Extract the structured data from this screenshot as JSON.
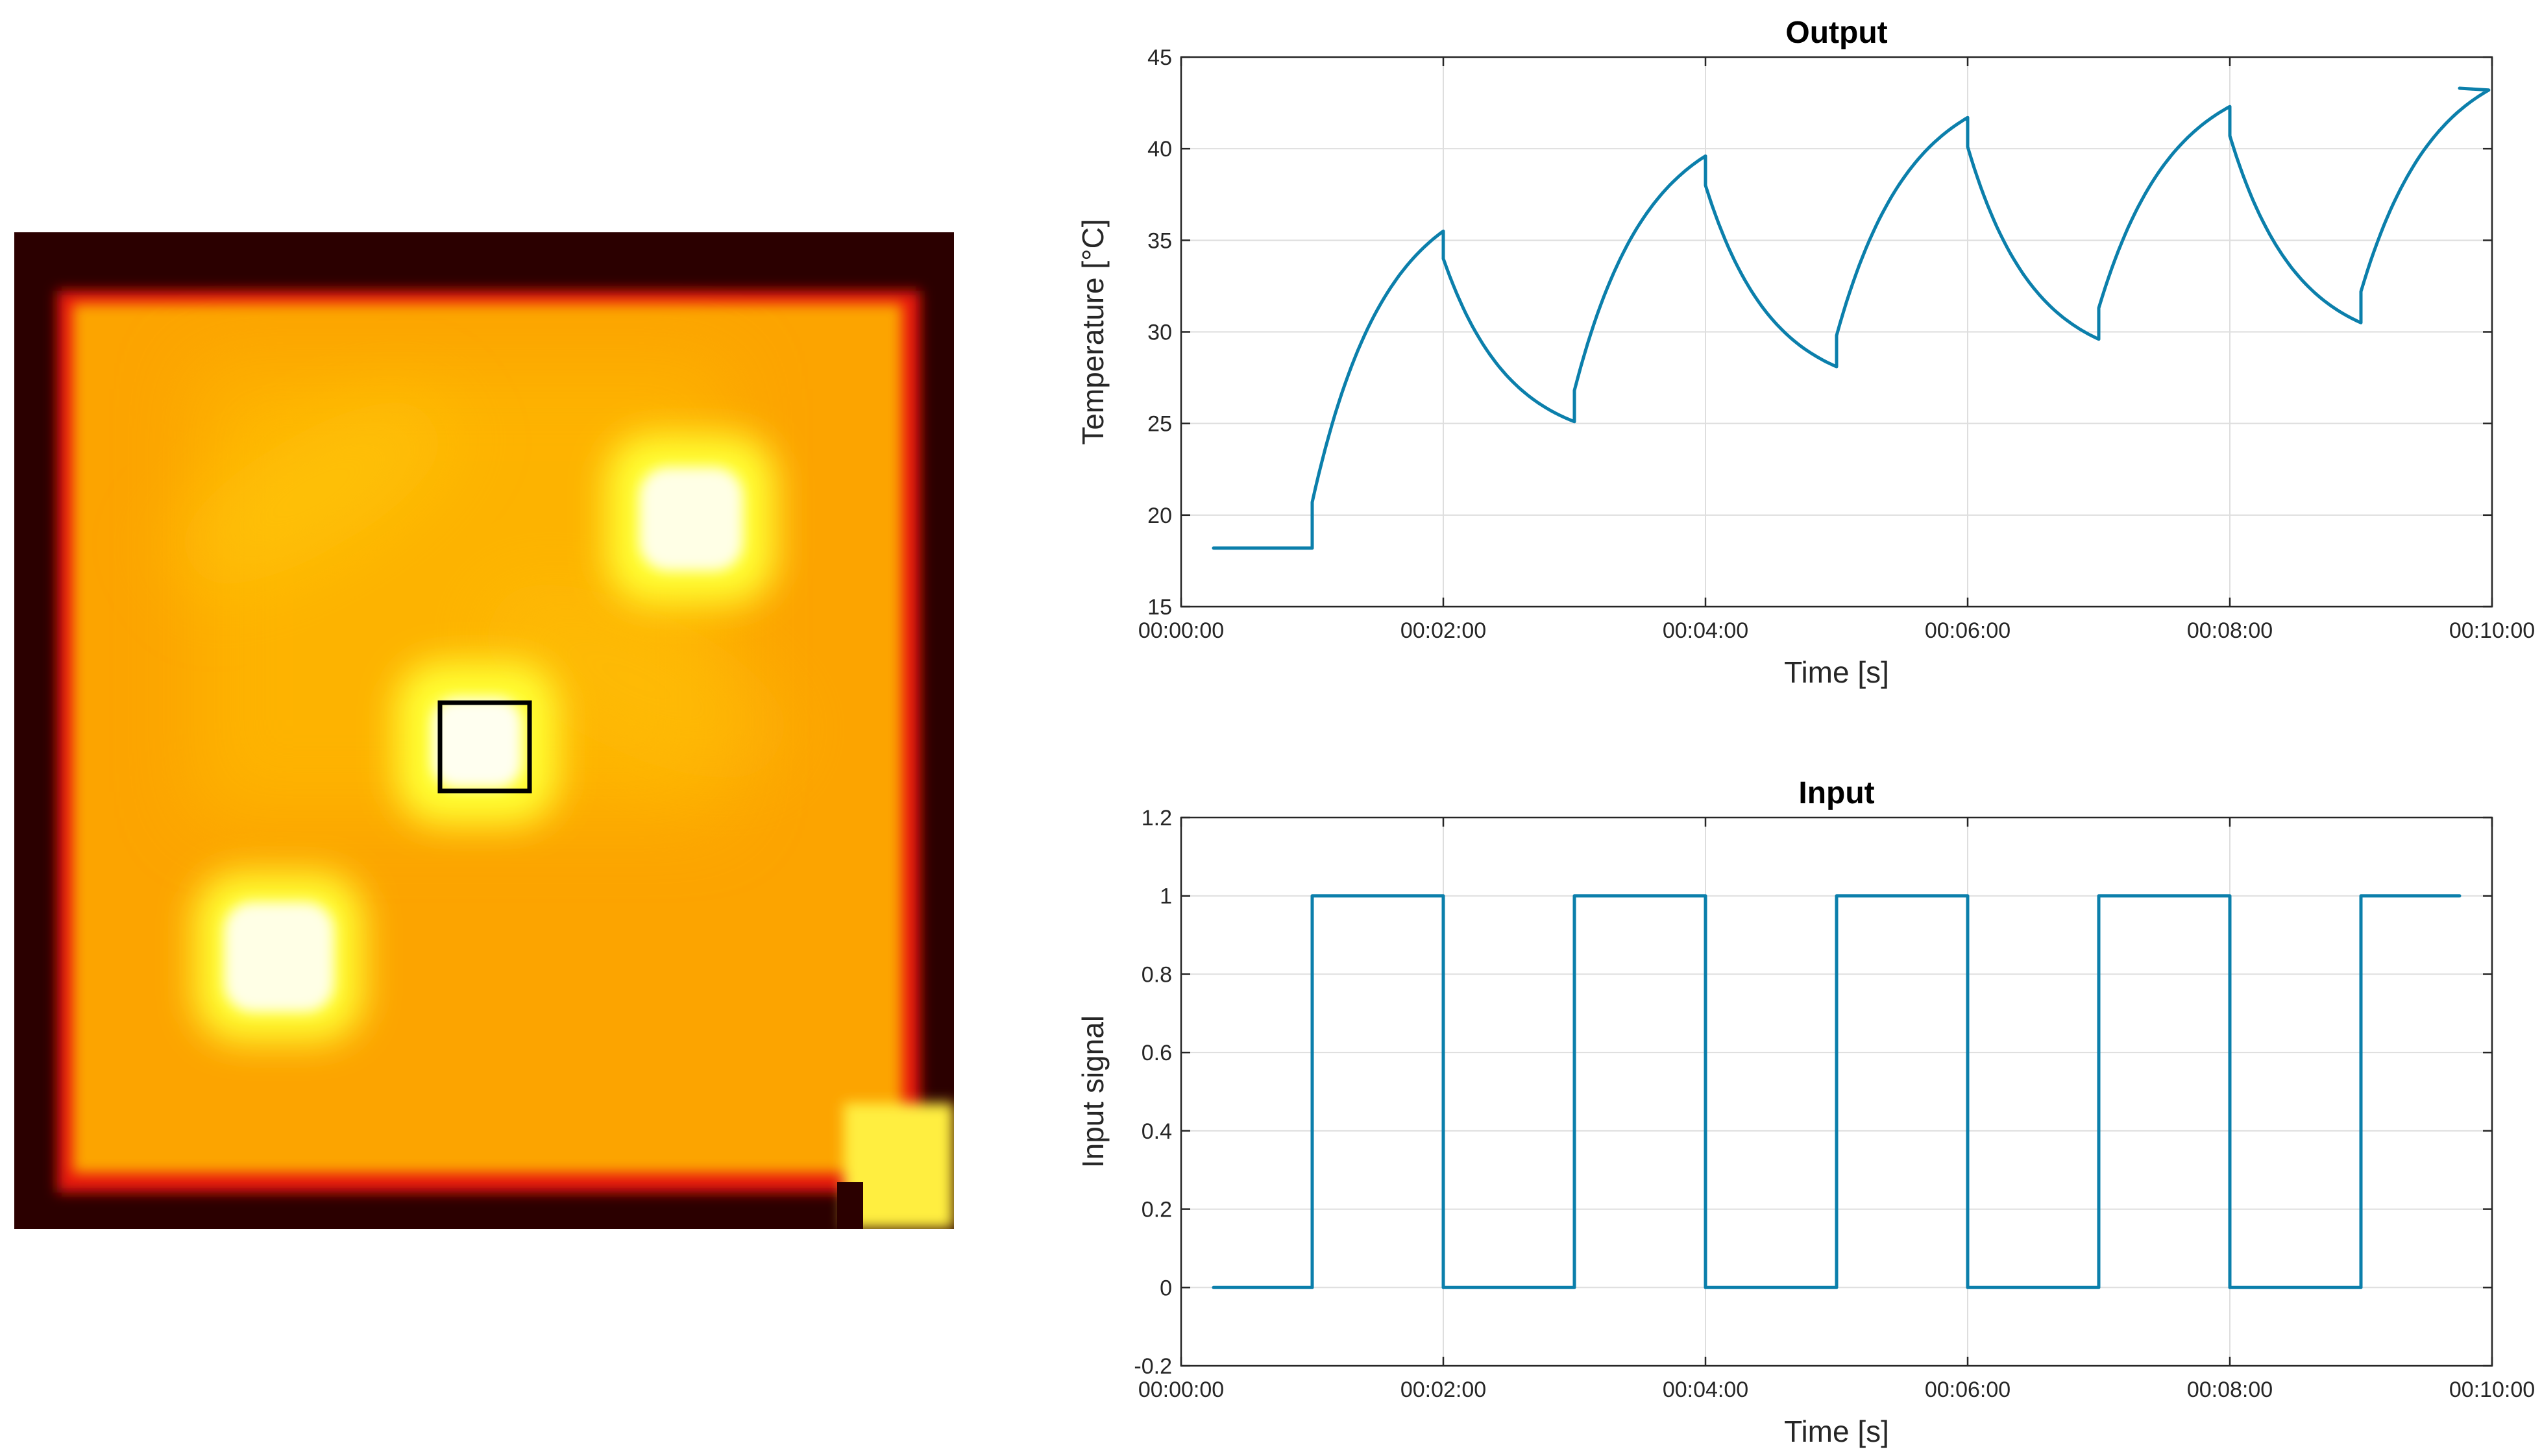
{
  "thermal_image": {
    "palette": [
      "#2b0000",
      "#8a0000",
      "#ff2a00",
      "#ff9f00",
      "#ffd000",
      "#ffff40",
      "#ffffff"
    ]
  },
  "chart_data": [
    {
      "type": "line",
      "title": "Output",
      "xlabel": "Time [s]",
      "ylabel": "Temperature [°C]",
      "grid": true,
      "xlim": [
        0,
        600
      ],
      "ylim": [
        15,
        45
      ],
      "xticks": [
        0,
        120,
        240,
        360,
        480,
        600
      ],
      "xtick_labels": [
        "00:00:00",
        "00:02:00",
        "00:04:00",
        "00:06:00",
        "00:08:00",
        "00:10:00"
      ],
      "yticks": [
        15,
        20,
        25,
        30,
        35,
        40,
        45
      ],
      "ytick_labels": [
        "15",
        "20",
        "25",
        "30",
        "35",
        "40",
        "45"
      ],
      "color": "#0b7fab",
      "series": [
        {
          "segments": [
            {
              "kind": "flat",
              "t0": 0,
              "t1": 60,
              "v": 18.2
            },
            {
              "kind": "heat",
              "t0": 60,
              "t1": 120,
              "v0": 18.2,
              "v1": 35.5,
              "jump": 2.5
            },
            {
              "kind": "cool",
              "t0": 120,
              "t1": 180,
              "v0": 35.5,
              "v1": 25.1,
              "jump": 1.5
            },
            {
              "kind": "heat",
              "t0": 180,
              "t1": 240,
              "v0": 25.1,
              "v1": 39.6,
              "jump": 1.7
            },
            {
              "kind": "cool",
              "t0": 240,
              "t1": 300,
              "v0": 39.6,
              "v1": 28.1,
              "jump": 1.6
            },
            {
              "kind": "heat",
              "t0": 300,
              "t1": 360,
              "v0": 28.1,
              "v1": 41.7,
              "jump": 1.7
            },
            {
              "kind": "cool",
              "t0": 360,
              "t1": 420,
              "v0": 41.7,
              "v1": 29.6,
              "jump": 1.6
            },
            {
              "kind": "heat",
              "t0": 420,
              "t1": 480,
              "v0": 29.6,
              "v1": 42.3,
              "jump": 1.7
            },
            {
              "kind": "cool",
              "t0": 480,
              "t1": 540,
              "v0": 42.3,
              "v1": 30.5,
              "jump": 1.6
            },
            {
              "kind": "heat",
              "t0": 540,
              "t1": 600,
              "v0": 30.5,
              "v1": 43.3,
              "jump": 1.7
            }
          ]
        }
      ]
    },
    {
      "type": "line",
      "title": "Input",
      "xlabel": "Time [s]",
      "ylabel": "Input signal",
      "grid": true,
      "xlim": [
        0,
        600
      ],
      "ylim": [
        -0.2,
        1.2
      ],
      "xticks": [
        0,
        120,
        240,
        360,
        480,
        600
      ],
      "xtick_labels": [
        "00:00:00",
        "00:02:00",
        "00:04:00",
        "00:06:00",
        "00:08:00",
        "00:10:00"
      ],
      "yticks": [
        -0.2,
        0,
        0.2,
        0.4,
        0.6,
        0.8,
        1,
        1.2
      ],
      "ytick_labels": [
        "-0.2",
        "0",
        "0.2",
        "0.4",
        "0.6",
        "0.8",
        "1",
        "1.2"
      ],
      "color": "#0b7fab",
      "series": [
        {
          "x": [
            0,
            60,
            60,
            120,
            120,
            180,
            180,
            240,
            240,
            300,
            300,
            360,
            360,
            420,
            420,
            480,
            480,
            540,
            540,
            600
          ],
          "y": [
            0,
            0,
            1,
            1,
            0,
            0,
            1,
            1,
            0,
            0,
            1,
            1,
            0,
            0,
            1,
            1,
            0,
            0,
            1,
            1
          ]
        }
      ]
    }
  ]
}
